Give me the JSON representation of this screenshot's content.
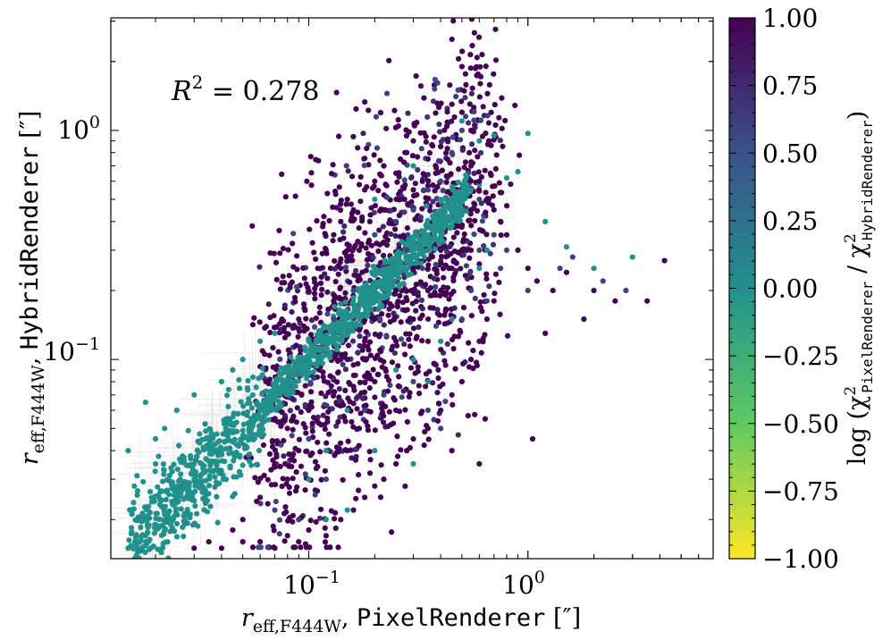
{
  "chart_data": {
    "type": "scatter",
    "x_scale": "log",
    "y_scale": "log",
    "xlim": [
      0.0125,
      7.0
    ],
    "ylim": [
      0.0135,
      3.1
    ],
    "x_ticks": [
      {
        "value": 0.1,
        "base": "10",
        "exp": "−1"
      },
      {
        "value": 1.0,
        "base": "10",
        "exp": "0"
      }
    ],
    "y_ticks": [
      {
        "value": 0.1,
        "base": "10",
        "exp": "−1"
      },
      {
        "value": 1.0,
        "base": "10",
        "exp": "0"
      }
    ],
    "annotation": {
      "prefix": "R",
      "sup": "2",
      "text": " = 0.278"
    },
    "xlabel": {
      "symbol": "r",
      "sub": "eff,F444W",
      "name": "PixelRenderer",
      "unit": "[″]"
    },
    "ylabel": {
      "symbol": "r",
      "sub": "eff,F444W",
      "name": "HybridRenderer",
      "unit": "[″]"
    },
    "colorbar": {
      "range": [
        -1.0,
        1.0
      ],
      "ticks": [
        "1.00",
        "0.75",
        "0.50",
        "0.25",
        "0.00",
        "−0.25",
        "−0.50",
        "−0.75",
        "−1.00"
      ],
      "label": {
        "prefix": "log (χ",
        "sup": "2",
        "num_sub": "PixelRenderer",
        "slash": " / χ",
        "den_sub": "HybridRenderer",
        "suffix": ")"
      },
      "colormap": [
        "#fde725",
        "#5ec962",
        "#21918c",
        "#3b528b",
        "#440154"
      ]
    },
    "grid": false,
    "legend": "none",
    "note": "dense cloud of points, one-to-one diagonal ridge in teal (~0.0), off-diagonal points dark purple (~1.0)",
    "series": [
      {
        "points": [
          [
            0.015,
            0.015,
            0.0
          ],
          [
            0.017,
            0.016,
            0.0
          ],
          [
            0.018,
            0.017,
            0.0
          ],
          [
            0.02,
            0.019,
            0.0
          ],
          [
            0.022,
            0.021,
            0.0
          ],
          [
            0.025,
            0.024,
            0.0
          ],
          [
            0.028,
            0.027,
            0.0
          ],
          [
            0.03,
            0.03,
            0.0
          ],
          [
            0.033,
            0.032,
            0.0
          ],
          [
            0.036,
            0.036,
            0.0
          ],
          [
            0.04,
            0.039,
            0.0
          ],
          [
            0.045,
            0.044,
            0.0
          ],
          [
            0.05,
            0.049,
            0.0
          ],
          [
            0.055,
            0.055,
            0.0
          ],
          [
            0.06,
            0.06,
            0.0
          ],
          [
            0.07,
            0.068,
            0.0
          ],
          [
            0.08,
            0.078,
            0.0
          ],
          [
            0.09,
            0.09,
            0.0
          ],
          [
            0.1,
            0.1,
            0.0
          ],
          [
            0.12,
            0.118,
            0.0
          ],
          [
            0.14,
            0.138,
            0.0
          ],
          [
            0.16,
            0.16,
            0.0
          ],
          [
            0.18,
            0.18,
            0.0
          ],
          [
            0.2,
            0.2,
            0.0
          ],
          [
            0.23,
            0.23,
            0.0
          ],
          [
            0.26,
            0.26,
            0.0
          ],
          [
            0.3,
            0.3,
            0.0
          ],
          [
            0.34,
            0.34,
            0.0
          ],
          [
            0.38,
            0.38,
            0.0
          ],
          [
            0.42,
            0.42,
            0.0
          ],
          [
            0.46,
            0.46,
            0.0
          ],
          [
            0.5,
            0.5,
            0.0
          ],
          [
            0.55,
            0.55,
            0.0
          ],
          [
            0.6,
            0.58,
            0.0
          ],
          [
            0.02,
            0.045,
            0.0
          ],
          [
            0.025,
            0.06,
            0.0
          ],
          [
            0.03,
            0.07,
            0.0
          ],
          [
            0.04,
            0.08,
            0.0
          ],
          [
            0.05,
            0.1,
            0.0
          ],
          [
            0.06,
            0.12,
            0.0
          ],
          [
            0.018,
            0.065,
            0.0
          ],
          [
            0.02,
            0.035,
            0.0
          ],
          [
            0.022,
            0.05,
            0.0
          ],
          [
            0.015,
            0.04,
            0.0
          ],
          [
            0.016,
            0.028,
            0.0
          ],
          [
            0.045,
            0.09,
            0.0
          ],
          [
            0.07,
            0.13,
            0.0
          ],
          [
            0.08,
            0.08,
            0.05
          ],
          [
            0.1,
            0.12,
            0.05
          ],
          [
            0.2,
            0.5,
            0.0
          ],
          [
            0.3,
            0.7,
            0.0
          ],
          [
            0.4,
            0.5,
            0.0
          ],
          [
            0.6,
            0.9,
            0.0
          ],
          [
            0.5,
            1.1,
            0.0
          ],
          [
            0.7,
            0.95,
            0.0
          ],
          [
            1.0,
            0.97,
            0.0
          ],
          [
            0.8,
            0.62,
            0.0
          ],
          [
            0.9,
            0.66,
            0.0
          ],
          [
            1.2,
            0.4,
            0.0
          ],
          [
            1.5,
            0.31,
            0.0
          ],
          [
            2.0,
            0.25,
            0.0
          ],
          [
            3.0,
            0.28,
            0.0
          ],
          [
            0.3,
            0.1,
            0.0
          ],
          [
            0.4,
            0.12,
            0.0
          ],
          [
            0.25,
            0.09,
            0.0
          ],
          [
            0.2,
            0.04,
            0.0
          ],
          [
            0.3,
            0.035,
            0.0
          ],
          [
            0.35,
            0.08,
            0.0
          ],
          [
            0.45,
            0.15,
            0.0
          ],
          [
            0.6,
            0.25,
            0.0
          ],
          [
            0.65,
            0.3,
            0.0
          ],
          [
            0.35,
            0.35,
            0.0
          ],
          [
            0.1,
            0.03,
            0.0
          ],
          [
            0.12,
            0.04,
            0.0
          ],
          [
            0.15,
            0.06,
            0.0
          ],
          [
            0.12,
            0.02,
            0.0
          ],
          [
            0.15,
            0.022,
            0.0
          ],
          [
            0.03,
            0.015,
            1.0
          ],
          [
            0.035,
            0.016,
            1.0
          ],
          [
            0.04,
            0.015,
            1.0
          ],
          [
            0.05,
            0.016,
            1.0
          ],
          [
            0.06,
            0.016,
            1.0
          ],
          [
            0.07,
            0.015,
            1.0
          ],
          [
            0.08,
            0.017,
            1.0
          ],
          [
            0.09,
            0.016,
            1.0
          ],
          [
            0.1,
            0.018,
            1.0
          ],
          [
            0.12,
            0.017,
            1.0
          ],
          [
            0.14,
            0.02,
            1.0
          ],
          [
            0.16,
            0.022,
            1.0
          ],
          [
            0.18,
            0.025,
            1.0
          ],
          [
            0.2,
            0.028,
            1.0
          ],
          [
            0.22,
            0.03,
            1.0
          ],
          [
            0.25,
            0.035,
            1.0
          ],
          [
            0.28,
            0.04,
            1.0
          ],
          [
            0.3,
            0.045,
            1.0
          ],
          [
            0.35,
            0.05,
            1.0
          ],
          [
            0.4,
            0.06,
            1.0
          ],
          [
            0.45,
            0.07,
            1.0
          ],
          [
            0.5,
            0.08,
            1.0
          ],
          [
            0.55,
            0.1,
            1.0
          ],
          [
            0.6,
            0.12,
            1.0
          ],
          [
            0.65,
            0.15,
            1.0
          ],
          [
            0.7,
            0.18,
            1.0
          ],
          [
            0.12,
            0.3,
            1.0
          ],
          [
            0.13,
            0.35,
            1.0
          ],
          [
            0.14,
            0.4,
            1.0
          ],
          [
            0.15,
            0.5,
            1.0
          ],
          [
            0.16,
            0.45,
            1.0
          ],
          [
            0.18,
            0.55,
            1.0
          ],
          [
            0.2,
            0.6,
            1.0
          ],
          [
            0.22,
            0.7,
            1.0
          ],
          [
            0.25,
            0.65,
            1.0
          ],
          [
            0.28,
            0.8,
            1.0
          ],
          [
            0.3,
            0.9,
            1.0
          ],
          [
            0.35,
            0.75,
            1.0
          ],
          [
            0.4,
            0.85,
            1.0
          ],
          [
            0.45,
            2.5,
            1.0
          ],
          [
            0.5,
            1.9,
            1.0
          ],
          [
            0.45,
            1.3,
            1.0
          ],
          [
            0.5,
            1.2,
            1.0
          ],
          [
            0.55,
            1.0,
            1.0
          ],
          [
            0.55,
            0.7,
            1.0
          ],
          [
            0.6,
            0.6,
            1.0
          ],
          [
            0.65,
            0.5,
            1.0
          ],
          [
            0.7,
            0.45,
            1.0
          ],
          [
            0.75,
            0.4,
            1.0
          ],
          [
            0.8,
            0.35,
            1.0
          ],
          [
            0.9,
            0.3,
            1.0
          ],
          [
            1.0,
            0.25,
            1.0
          ],
          [
            1.1,
            0.22,
            1.0
          ],
          [
            1.3,
            0.2,
            1.0
          ],
          [
            1.5,
            0.24,
            1.0
          ],
          [
            2.0,
            0.2,
            1.0
          ],
          [
            2.5,
            0.18,
            1.0
          ],
          [
            4.2,
            0.27,
            1.0
          ],
          [
            3.5,
            0.18,
            1.0
          ],
          [
            1.8,
            0.15,
            1.0
          ],
          [
            1.2,
            0.13,
            1.0
          ],
          [
            1.05,
            0.045,
            1.0
          ],
          [
            0.6,
            0.035,
            1.0
          ],
          [
            0.45,
            0.04,
            1.0
          ],
          [
            0.1,
            0.2,
            1.0
          ],
          [
            0.11,
            0.25,
            1.0
          ],
          [
            0.09,
            0.15,
            1.0
          ],
          [
            0.08,
            0.03,
            1.0
          ],
          [
            0.06,
            0.025,
            1.0
          ],
          [
            0.05,
            0.02,
            1.0
          ],
          [
            0.045,
            0.018,
            1.0
          ],
          [
            0.25,
            0.2,
            1.0
          ],
          [
            0.3,
            0.25,
            1.0
          ],
          [
            0.35,
            0.2,
            1.0
          ],
          [
            0.4,
            0.3,
            1.0
          ],
          [
            0.2,
            0.15,
            1.0
          ],
          [
            0.15,
            0.1,
            1.0
          ],
          [
            0.18,
            0.12,
            1.0
          ],
          [
            0.25,
            0.12,
            1.0
          ],
          [
            0.3,
            0.15,
            1.0
          ],
          [
            0.4,
            0.2,
            1.0
          ],
          [
            0.2,
            0.08,
            1.0
          ],
          [
            0.25,
            0.06,
            1.0
          ],
          [
            0.35,
            0.12,
            1.0
          ],
          [
            0.45,
            0.25,
            1.0
          ],
          [
            0.55,
            0.3,
            1.0
          ],
          [
            0.55,
            0.45,
            1.0
          ],
          [
            0.13,
            0.18,
            1.0
          ],
          [
            0.14,
            0.25,
            1.0
          ],
          [
            0.17,
            0.3,
            1.0
          ],
          [
            0.19,
            0.4,
            1.0
          ],
          [
            0.22,
            0.45,
            1.0
          ],
          [
            0.26,
            0.5,
            1.0
          ],
          [
            0.3,
            0.55,
            1.0
          ],
          [
            0.33,
            0.6,
            1.0
          ],
          [
            0.38,
            0.65,
            1.0
          ],
          [
            0.15,
            0.04,
            1.0
          ],
          [
            0.17,
            0.05,
            1.0
          ],
          [
            0.1,
            0.06,
            1.0
          ],
          [
            0.08,
            0.05,
            1.0
          ],
          [
            0.09,
            0.04,
            1.0
          ],
          [
            0.2,
            0.35,
            0.6
          ],
          [
            0.25,
            0.4,
            0.6
          ],
          [
            0.3,
            0.45,
            0.6
          ],
          [
            0.35,
            0.55,
            0.6
          ],
          [
            0.4,
            0.6,
            0.6
          ],
          [
            0.45,
            0.8,
            0.6
          ],
          [
            0.5,
            1.0,
            0.6
          ],
          [
            0.52,
            1.15,
            0.6
          ],
          [
            0.48,
            1.5,
            0.6
          ],
          [
            0.5,
            0.15,
            0.6
          ],
          [
            0.55,
            0.2,
            0.6
          ],
          [
            0.6,
            0.3,
            0.6
          ],
          [
            0.7,
            0.35,
            0.6
          ],
          [
            0.75,
            0.25,
            0.6
          ],
          [
            0.8,
            0.3,
            0.6
          ],
          [
            1.4,
            0.25,
            0.6
          ],
          [
            2.2,
            0.22,
            0.6
          ],
          [
            2.8,
            0.2,
            0.6
          ],
          [
            0.3,
            0.08,
            0.6
          ],
          [
            0.35,
            0.06,
            0.6
          ],
          [
            0.4,
            0.05,
            0.6
          ],
          [
            0.18,
            0.06,
            0.6
          ],
          [
            0.22,
            0.07,
            0.6
          ],
          [
            0.12,
            0.03,
            0.6
          ],
          [
            0.13,
            0.15,
            0.6
          ],
          [
            0.16,
            0.2,
            0.6
          ],
          [
            0.1,
            0.045,
            0.6
          ],
          [
            0.09,
            0.02,
            0.6
          ],
          [
            0.07,
            0.022,
            0.6
          ],
          [
            0.28,
            0.3,
            0.6
          ],
          [
            0.33,
            0.25,
            0.6
          ],
          [
            0.6,
            0.5,
            0.6
          ],
          [
            0.65,
            0.18,
            0.6
          ],
          [
            1.6,
            0.28,
            0.6
          ],
          [
            1.0,
            0.2,
            0.6
          ]
        ]
      }
    ]
  }
}
